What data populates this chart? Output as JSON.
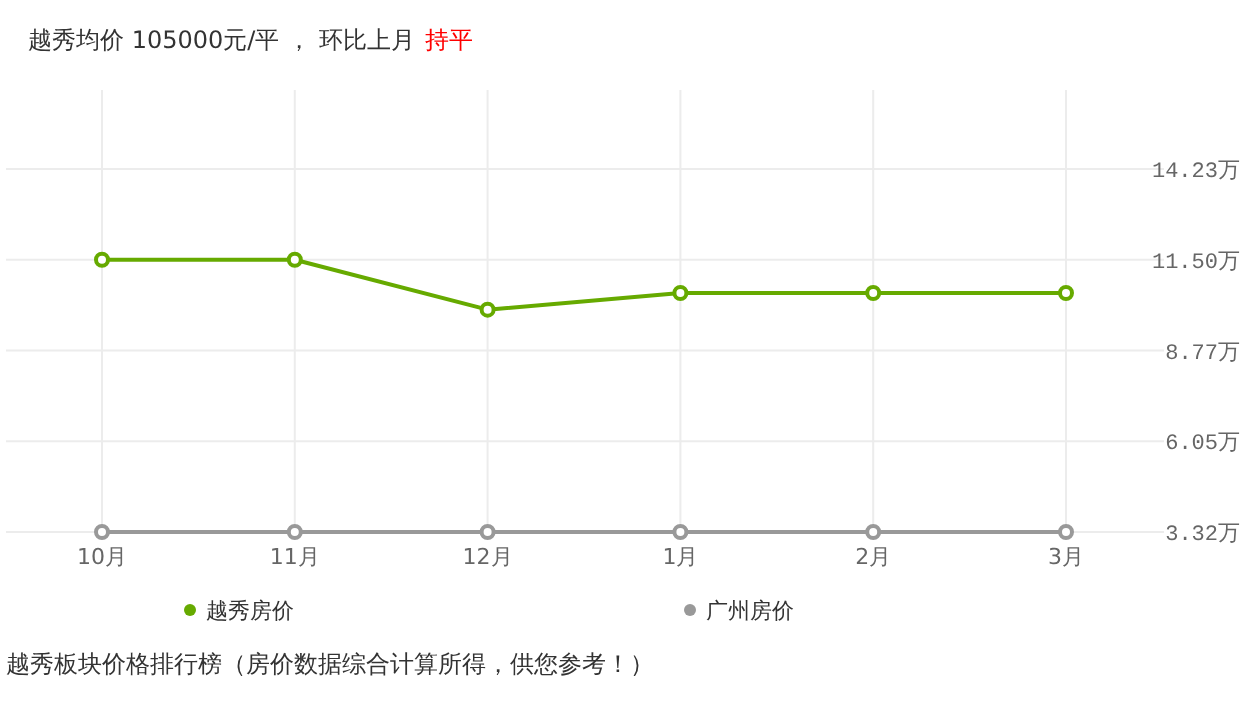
{
  "chart_data": {
    "type": "line",
    "title": "越秀均价 105000元/平 ， 环比上月",
    "subtitle": "持平",
    "categories": [
      "10月",
      "11月",
      "12月",
      "1月",
      "2月",
      "3月"
    ],
    "series": [
      {
        "name": "越秀房价",
        "color": "#66aa00",
        "values": [
          11.5,
          11.5,
          10.0,
          10.5,
          10.5,
          10.5
        ]
      },
      {
        "name": "广州房价",
        "color": "#999999",
        "values": [
          3.32,
          3.32,
          3.32,
          3.32,
          3.32,
          3.32
        ]
      }
    ],
    "ylim": [
      3.32,
      16.6
    ],
    "yticks": [
      {
        "value": 3.32,
        "label": "3.32万"
      },
      {
        "value": 6.05,
        "label": "6.05万"
      },
      {
        "value": 8.77,
        "label": "8.77万"
      },
      {
        "value": 11.5,
        "label": "11.50万"
      },
      {
        "value": 14.23,
        "label": "14.23万"
      }
    ],
    "grid": true,
    "legend": "bottom",
    "marker": "circle",
    "line_style": "solid",
    "annotations": [
      "越秀板块价格排行榜（房价数据综合计算所得，供您参考！）"
    ]
  }
}
